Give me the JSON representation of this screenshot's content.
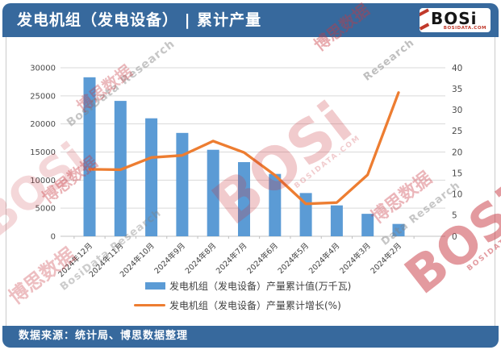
{
  "header": {
    "title": "发电机组（发电设备） | 累计产量",
    "logo": {
      "name": "BOSi",
      "domain": "BOSIDATA.COM"
    }
  },
  "footer": {
    "source": "数据来源：统计局、博思数据整理"
  },
  "watermarks": {
    "logo": "BOSi",
    "domain": "BOSIDATA.COM",
    "cjk": "博思数据",
    "latin": "BosiData Research",
    "latin_short": "Research",
    "latin_mid": "Data Research"
  },
  "colors": {
    "brand_blue": "#37699D",
    "bar": "#5B9BD5",
    "line": "#ED7D31",
    "grid": "#D9D9D9",
    "watermark_red": "#C7363F",
    "watermark_gray": "#808080"
  },
  "chart_data": {
    "type": "bar",
    "subtype": "combo-bar-line",
    "categories": [
      "2024年12月",
      "2024年11月",
      "2024年10月",
      "2024年9月",
      "2024年8月",
      "2024年7月",
      "2024年6月",
      "2024年5月",
      "2024年4月",
      "2024年3月",
      "2024年2月"
    ],
    "series": [
      {
        "name": "发电机组（发电设备）产量累计值(万千瓦)",
        "type": "bar",
        "axis": "left",
        "color": "#5B9BD5",
        "values": [
          28300,
          24100,
          21000,
          18400,
          15400,
          13200,
          11100,
          7700,
          5500,
          4000,
          2200
        ]
      },
      {
        "name": "发电机组（发电设备）产量累计增长(%)",
        "type": "line",
        "axis": "right",
        "color": "#ED7D31",
        "values": [
          15.9,
          15.8,
          18.7,
          19.2,
          22.6,
          19.9,
          14.5,
          7.7,
          8.0,
          14.6,
          34.1
        ]
      }
    ],
    "left_axis": {
      "min": 0,
      "max": 30000,
      "step": 5000,
      "label": "万千瓦"
    },
    "right_axis": {
      "min": 0,
      "max": 40,
      "step": 5,
      "label": "%"
    },
    "grid": true,
    "legend_position": "bottom",
    "x_label_rotation": -45
  }
}
